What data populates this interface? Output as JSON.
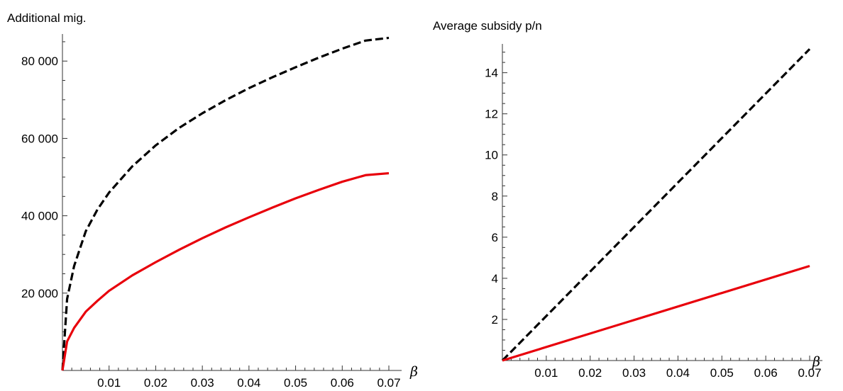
{
  "chart_data": [
    {
      "type": "line",
      "ylabel": "Additional mig.",
      "xlabel": "β",
      "xlim": [
        0,
        0.07
      ],
      "ylim": [
        0,
        87000
      ],
      "x_ticks": [
        0.01,
        0.02,
        0.03,
        0.04,
        0.05,
        0.06,
        0.07
      ],
      "x_tick_labels": [
        "0.01",
        "0.02",
        "0.03",
        "0.04",
        "0.05",
        "0.06",
        "0.07"
      ],
      "y_ticks": [
        20000,
        40000,
        60000,
        80000
      ],
      "y_tick_labels": [
        "20 000",
        "40 000",
        "60 000",
        "80 000"
      ],
      "grid": false,
      "series": [
        {
          "style": "dashed",
          "color": "#000000",
          "x": [
            0,
            0.001,
            0.0025,
            0.005,
            0.0075,
            0.01,
            0.015,
            0.02,
            0.025,
            0.03,
            0.035,
            0.04,
            0.045,
            0.05,
            0.055,
            0.06,
            0.065,
            0.07
          ],
          "values": [
            0,
            18500,
            27000,
            36000,
            41600,
            46000,
            52800,
            58200,
            62700,
            66500,
            69900,
            73000,
            75800,
            78400,
            80900,
            83200,
            85300,
            86000
          ]
        },
        {
          "style": "solid",
          "color": "#e8000b",
          "x": [
            0,
            0.001,
            0.0025,
            0.005,
            0.0075,
            0.01,
            0.015,
            0.02,
            0.025,
            0.03,
            0.035,
            0.04,
            0.045,
            0.05,
            0.055,
            0.06,
            0.065,
            0.07
          ],
          "values": [
            0,
            7500,
            11000,
            15200,
            18000,
            20600,
            24600,
            28000,
            31200,
            34200,
            37000,
            39600,
            42100,
            44500,
            46700,
            48800,
            50500,
            51000
          ]
        }
      ]
    },
    {
      "type": "line",
      "ylabel": "Average subsidy p/n",
      "xlabel": "β",
      "xlim": [
        0,
        0.07
      ],
      "ylim": [
        0,
        15.4
      ],
      "x_ticks": [
        0.01,
        0.02,
        0.03,
        0.04,
        0.05,
        0.06,
        0.07
      ],
      "x_tick_labels": [
        "0.01",
        "0.02",
        "0.03",
        "0.04",
        "0.05",
        "0.06",
        "0.07"
      ],
      "y_ticks": [
        2,
        4,
        6,
        8,
        10,
        12,
        14
      ],
      "y_tick_labels": [
        "2",
        "4",
        "6",
        "8",
        "10",
        "12",
        "14"
      ],
      "grid": false,
      "series": [
        {
          "style": "dashed",
          "color": "#000000",
          "x": [
            0,
            0.07
          ],
          "values": [
            0,
            15.15
          ]
        },
        {
          "style": "solid",
          "color": "#e8000b",
          "x": [
            0,
            0.07
          ],
          "values": [
            0,
            4.6
          ]
        }
      ]
    }
  ]
}
